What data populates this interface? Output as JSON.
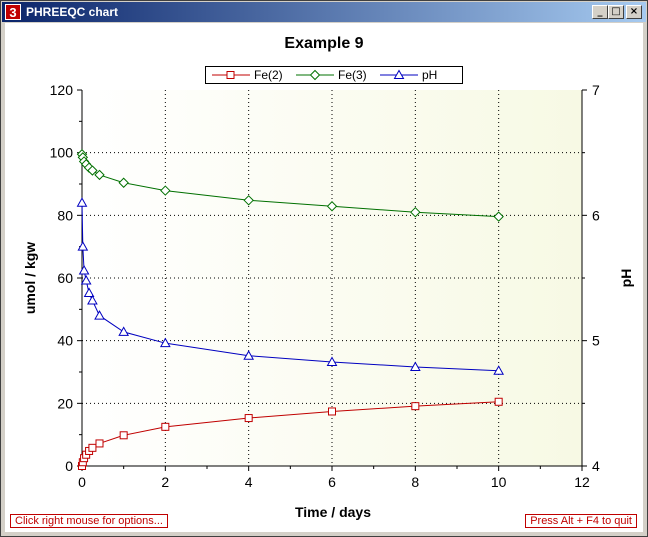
{
  "window": {
    "title": "PHREEQC chart",
    "icon_text": "3",
    "buttons": {
      "minimize": "_",
      "maximize": "□",
      "close": "×"
    }
  },
  "footer": {
    "options_hint": "Click right mouse for options...",
    "quit_hint": "Press Alt + F4 to quit"
  },
  "colors": {
    "fe2": "#c00000",
    "fe3": "#007000",
    "ph": "#0000c0",
    "plot_bg_left": "#ffffff",
    "plot_bg_right": "#f7f9e4"
  },
  "chart_data": {
    "type": "line",
    "title": "Example 9",
    "xlabel": "Time / days",
    "ylabel": "umol / kgw",
    "y2label": "pH",
    "xlim": [
      0,
      12
    ],
    "ylim": [
      0,
      120
    ],
    "y2lim": [
      4,
      7
    ],
    "xticks": [
      "0",
      "2",
      "4",
      "6",
      "8",
      "10",
      "12"
    ],
    "yticks": [
      "0",
      "20",
      "40",
      "60",
      "80",
      "100",
      "120"
    ],
    "y2ticks": [
      "4",
      "5",
      "6",
      "7"
    ],
    "grid": true,
    "legend_position": "top-center",
    "series": [
      {
        "name": "Fe(2)",
        "axis": "left",
        "color": "#c00000",
        "marker": "square",
        "x": [
          0,
          0.02,
          0.05,
          0.1,
          0.17,
          0.25,
          0.42,
          1,
          2,
          4,
          6,
          8,
          10
        ],
        "y": [
          0,
          1.2,
          2.5,
          3.6,
          4.8,
          5.8,
          7.2,
          9.8,
          12.5,
          15.3,
          17.4,
          19.1,
          20.5
        ]
      },
      {
        "name": "Fe(3)",
        "axis": "left",
        "color": "#007000",
        "marker": "diamond",
        "x": [
          0,
          0.02,
          0.05,
          0.1,
          0.17,
          0.25,
          0.42,
          1,
          2,
          4,
          6,
          8,
          10
        ],
        "y": [
          99.5,
          98.5,
          97.2,
          96.3,
          95.2,
          94.3,
          92.9,
          90.4,
          87.9,
          84.8,
          82.9,
          81.0,
          79.6
        ]
      },
      {
        "name": "pH",
        "axis": "right",
        "color": "#0000c0",
        "marker": "triangle",
        "x": [
          0,
          0.02,
          0.05,
          0.1,
          0.17,
          0.25,
          0.42,
          1,
          2,
          4,
          6,
          8,
          10
        ],
        "y": [
          6.1,
          5.75,
          5.56,
          5.48,
          5.38,
          5.32,
          5.2,
          5.07,
          4.98,
          4.88,
          4.83,
          4.79,
          4.76
        ]
      }
    ]
  }
}
